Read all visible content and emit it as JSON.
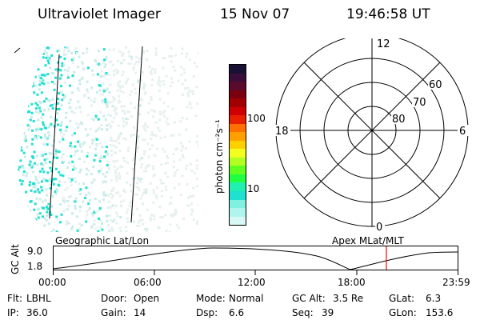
{
  "header": {
    "title": "Ultraviolet Imager",
    "date": "15 Nov 07",
    "time": "19:46:58 UT"
  },
  "colorbar": {
    "unit_label": "photon cm⁻²s⁻¹",
    "ticks": [
      "100",
      "10"
    ],
    "colors": [
      "#1a1036",
      "#3a0c3a",
      "#5a0a2a",
      "#7a0010",
      "#a00000",
      "#cc0000",
      "#e82000",
      "#ff7000",
      "#ffa000",
      "#ffd000",
      "#f0ff20",
      "#b0ff20",
      "#60ff20",
      "#20ff40",
      "#20f0b0",
      "#20e0d0",
      "#80f0e0",
      "#b0f4ee",
      "#d8f8f4"
    ]
  },
  "polar_plot": {
    "mlt_labels": [
      "12",
      "6",
      "0",
      "18"
    ],
    "latitude_labels": [
      "60",
      "70",
      "80"
    ]
  },
  "timeline": {
    "left_label": "Geographic Lat/Lon",
    "right_label": "Apex MLat/MLT",
    "axis_label": "GC Alt",
    "y_ticks": [
      "9.0",
      "1.8"
    ],
    "x_ticks": [
      "00:00",
      "06:00",
      "12:00",
      "18:00",
      "23:59"
    ],
    "marker_time_fraction": 0.824,
    "marker_color": "#ff0000"
  },
  "info": {
    "row1": [
      {
        "key": "Flt:",
        "value": "LBHL"
      },
      {
        "key": "Door:",
        "value": "Open"
      },
      {
        "key": "Mode:",
        "value": "Normal"
      },
      {
        "key": "GC Alt:",
        "value": "3.5 Re"
      },
      {
        "key": "GLat:",
        "value": "6.3"
      }
    ],
    "row2": [
      {
        "key": "IP:",
        "value": "36.0"
      },
      {
        "key": "Gain:",
        "value": "14"
      },
      {
        "key": "Dsp:",
        "value": "6.6"
      },
      {
        "key": "Seq:",
        "value": "39"
      },
      {
        "key": "GLon:",
        "value": "153.6"
      }
    ]
  },
  "colors": {
    "earth_cyan": "#20e0d0",
    "earth_light": "#c8ece8",
    "earth_pale": "#e6f0ee"
  }
}
